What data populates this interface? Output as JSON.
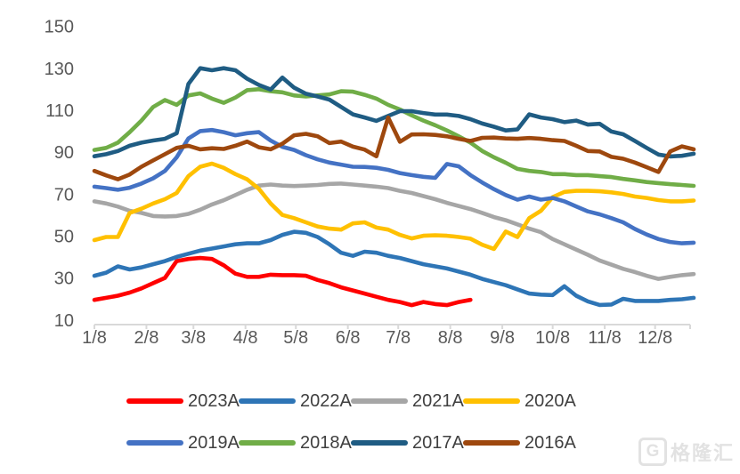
{
  "chart_data": {
    "type": "line",
    "title": "",
    "xlabel": "",
    "ylabel": "",
    "grid": false,
    "legend_position": "bottom",
    "y_axis": {
      "min": 10,
      "max": 150,
      "ticks": [
        150,
        130,
        110,
        90,
        70,
        50,
        30,
        10
      ]
    },
    "x_axis": {
      "tick_labels": [
        "1/8",
        "2/8",
        "3/8",
        "4/8",
        "5/8",
        "6/8",
        "7/8",
        "8/8",
        "9/8",
        "10/8",
        "11/8",
        "12/8"
      ],
      "tick_days": [
        0,
        31,
        59,
        90,
        120,
        151,
        181,
        212,
        243,
        273,
        304,
        334
      ],
      "max_day": 357,
      "week_step_days": 7
    },
    "legend_rows": [
      [
        "2023A",
        "2022A",
        "2021A",
        "2020A"
      ],
      [
        "2019A",
        "2018A",
        "2017A",
        "2016A"
      ]
    ],
    "series": [
      {
        "name": "2023A",
        "color": "#FF0000",
        "values": [
          20,
          21,
          22,
          23.5,
          25.5,
          28,
          30.5,
          38.5,
          39.5,
          40,
          39.5,
          36.5,
          32.5,
          31,
          31,
          32,
          31.8,
          31.8,
          31.5,
          29.5,
          28,
          26,
          24.5,
          23,
          21.5,
          20,
          19,
          17.5,
          19,
          18,
          17.5,
          19,
          20
        ]
      },
      {
        "name": "2022A",
        "color": "#2E75B6",
        "values": [
          31.5,
          33,
          36,
          34.5,
          35.5,
          37,
          38.5,
          40.5,
          42,
          43.5,
          44.5,
          45.5,
          46.5,
          47,
          47,
          48.5,
          51,
          52.5,
          52,
          50,
          46.5,
          42.5,
          41,
          43,
          42.5,
          41,
          40,
          38.5,
          37,
          36,
          35,
          33.5,
          32,
          30,
          28.5,
          27,
          25,
          23,
          22.5,
          22.3,
          26.5,
          22,
          19.3,
          17.6,
          17.8,
          20.5,
          19.5,
          19.5,
          19.5,
          20,
          20.3,
          21
        ]
      },
      {
        "name": "2021A",
        "color": "#A6A6A6",
        "values": [
          67,
          66,
          64.5,
          62.5,
          61.5,
          60,
          59.8,
          60,
          61,
          63,
          65.5,
          67.5,
          70,
          72.5,
          74.5,
          75,
          74.5,
          74.3,
          74.5,
          74.8,
          75.3,
          75.5,
          75,
          74.5,
          74,
          73.3,
          72,
          71,
          69.5,
          68,
          66.3,
          64.8,
          63.3,
          61.5,
          59.5,
          58,
          56,
          54,
          52.3,
          49,
          46.5,
          44,
          41.5,
          38.8,
          36.8,
          34.8,
          33.3,
          31.5,
          30,
          31,
          31.8,
          32.3
        ]
      },
      {
        "name": "2020A",
        "color": "#FFC000",
        "values": [
          48.5,
          50,
          50,
          61.5,
          63.5,
          66,
          68,
          71,
          79,
          83.5,
          85,
          83,
          80,
          77.5,
          73,
          66,
          60.5,
          59,
          57,
          55,
          54,
          53.5,
          56.5,
          57,
          54.5,
          53.5,
          51,
          49.3,
          50.6,
          50.8,
          50.6,
          50,
          49.2,
          46.3,
          44.3,
          52.6,
          50,
          59,
          62.5,
          69,
          71.5,
          72,
          72,
          71.8,
          71.3,
          70.5,
          69.3,
          68.6,
          67.6,
          67,
          67,
          67.4
        ]
      },
      {
        "name": "2019A",
        "color": "#4472C4",
        "values": [
          74,
          73.3,
          72.5,
          73.5,
          75.5,
          78,
          81.5,
          88,
          97,
          100.5,
          101,
          100,
          98.5,
          99.5,
          100,
          96,
          93,
          91.5,
          89,
          87,
          85.5,
          84.5,
          83.5,
          83.4,
          83,
          82,
          80.5,
          79.5,
          78.7,
          78.2,
          84.8,
          83.7,
          79.5,
          76,
          72.8,
          70,
          67.8,
          69.3,
          67.8,
          68.6,
          67,
          64.6,
          62.2,
          60.8,
          59,
          57,
          53.8,
          51.2,
          49,
          47.6,
          47,
          47.3
        ]
      },
      {
        "name": "2018A",
        "color": "#70AD47",
        "values": [
          91.5,
          92.5,
          95,
          100,
          105.5,
          112,
          115.3,
          113,
          117.5,
          118.5,
          116,
          114,
          116.5,
          120,
          120.5,
          119.5,
          119,
          117.5,
          117,
          117.5,
          118,
          119.5,
          119.3,
          117.8,
          116,
          113,
          110.8,
          108,
          105.5,
          103.3,
          100.8,
          98,
          95,
          91,
          88,
          85.4,
          82.5,
          81.5,
          81,
          80,
          80,
          79.5,
          79.5,
          79,
          78.6,
          77.7,
          77,
          76.2,
          75.7,
          75.2,
          74.8,
          74.4
        ]
      },
      {
        "name": "2017A",
        "color": "#1F5C83",
        "values": [
          88.5,
          89.5,
          91,
          93.5,
          95,
          96,
          96.8,
          99.5,
          123,
          130.5,
          129.5,
          130.5,
          129.5,
          125.5,
          122.5,
          120.3,
          126,
          121.2,
          118.3,
          117,
          115.5,
          112,
          108.5,
          107,
          105.4,
          107.7,
          110,
          110,
          109.1,
          108.4,
          108.4,
          107.7,
          106.2,
          104.1,
          102.6,
          100.8,
          101.3,
          108.5,
          107,
          106.2,
          104.8,
          105.5,
          103.6,
          104,
          100.3,
          99,
          95.8,
          92.5,
          89.3,
          88.4,
          88.7,
          89.7
        ]
      },
      {
        "name": "2016A",
        "color": "#9E480E",
        "values": [
          81.5,
          79.4,
          77.5,
          79.8,
          83.5,
          86.5,
          89.5,
          92.5,
          93.5,
          91.8,
          92.3,
          92,
          93.5,
          95.5,
          92.8,
          91.8,
          94.5,
          98.5,
          99.2,
          98,
          94.8,
          95.5,
          93.1,
          91.7,
          88.5,
          107,
          95.4,
          98.9,
          99,
          98.7,
          98,
          96.8,
          95.8,
          97.3,
          97.4,
          97,
          96.8,
          97.2,
          96.8,
          96.2,
          95.8,
          93.5,
          91,
          90.8,
          88.2,
          87.3,
          85.5,
          83.3,
          81,
          90.8,
          93.2,
          91.8
        ]
      }
    ],
    "style": {
      "axis_line_color": "#D9D9D9",
      "tick_text_color": "#595959",
      "legend_text_color": "#404040",
      "line_width": 4.6
    }
  },
  "watermark": {
    "logo_letter": "G",
    "logo_text": "格隆汇"
  }
}
